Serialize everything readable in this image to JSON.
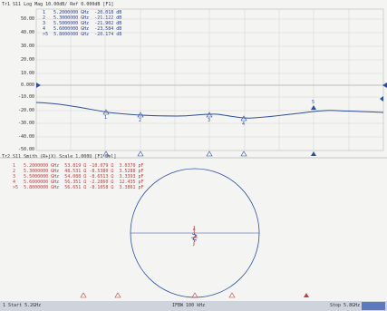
{
  "trace1": {
    "header": "Tr1 S11 Log Mag 10.00dB/ Ref 0.000dB [F1]",
    "y_axis_labels": [
      "50.00",
      "40.00",
      "30.00",
      "20.00",
      "10.00",
      "0.000",
      "-10.00",
      "-20.00",
      "-30.00",
      "-40.00",
      "-50.00"
    ],
    "markers": [
      {
        "id": "1",
        "freq": "5.2000000 GHz",
        "value": "-20.018 dB"
      },
      {
        "id": "2",
        "freq": "5.3000000 GHz",
        "value": "-21.122 dB"
      },
      {
        "id": "3",
        "freq": "5.5000000 GHz",
        "value": "-21.902 dB"
      },
      {
        "id": "4",
        "freq": "5.6000000 GHz",
        "value": "-23.584 dB"
      },
      {
        "id": ">5",
        "freq": "5.8000000 GHz",
        "value": "-20.174 dB"
      }
    ],
    "marker_tags": [
      "1",
      "2",
      "3",
      "4",
      "5"
    ]
  },
  "trace2": {
    "header": "Tr2 S11 Smith (R+jX) Scale 1.000U [F1 Del]",
    "markers": [
      {
        "id": "1",
        "freq": "5.2000000 GHz",
        "r": "53.819 Ω",
        "x": "-10.079 Ω",
        "c": "3.0370 pF"
      },
      {
        "id": "2",
        "freq": "5.3000000 GHz",
        "r": "48.531 Ω",
        "x": "-8.5380 Ω",
        "c": "3.5288 pF"
      },
      {
        "id": "3",
        "freq": "5.5000000 GHz",
        "r": "54.088 Ω",
        "x": "-8.6513 Ω",
        "c": "3.3393 pF"
      },
      {
        "id": "4",
        "freq": "5.6000000 GHz",
        "r": "56.351 Ω",
        "x": "-2.2860 Ω",
        "c": "12.435 pF"
      },
      {
        "id": ">5",
        "freq": "5.8000000 GHz",
        "r": "56.651 Ω",
        "x": "-8.1058 Ω",
        "c": "3.3861 pF"
      }
    ]
  },
  "status_bar": {
    "start": "1 Start 5.2GHz",
    "ifbw": "IFBW 100 kHz",
    "stop": "Stop 5.8GHz"
  },
  "colors": {
    "trace": "#2b4fa0",
    "marker_text": "#c04040",
    "grid": "#c8c8c8",
    "status_bar": "#cfd3dc"
  }
}
